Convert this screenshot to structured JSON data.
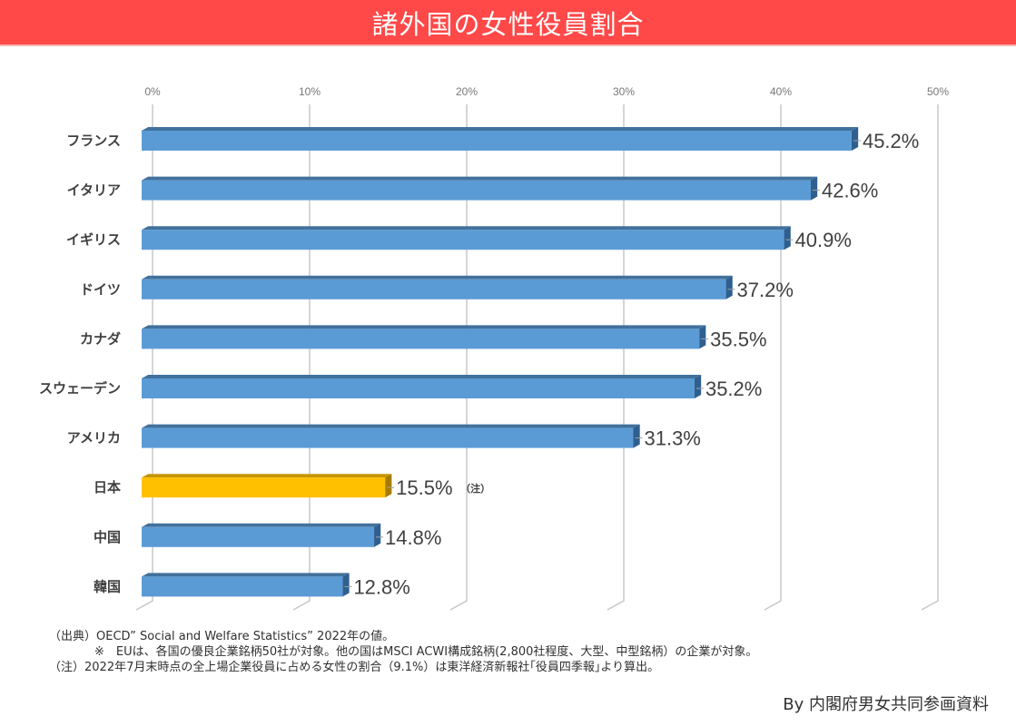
{
  "header": {
    "title": "諸外国の女性役員割合"
  },
  "chart_data": {
    "type": "bar",
    "orientation": "horizontal",
    "style": "3d",
    "title": "諸外国の女性役員割合",
    "xlabel": "",
    "ylabel": "",
    "xlim": [
      0,
      50
    ],
    "x_ticks": [
      0,
      10,
      20,
      30,
      40,
      50
    ],
    "x_tick_labels": [
      "0%",
      "10%",
      "20%",
      "30%",
      "40%",
      "50%"
    ],
    "x_axis_position": "top",
    "grid": true,
    "categories": [
      "フランス",
      "イタリア",
      "イギリス",
      "ドイツ",
      "カナダ",
      "スウェーデン",
      "アメリカ",
      "日本",
      "中国",
      "韓国"
    ],
    "values": [
      45.2,
      42.6,
      40.9,
      37.2,
      35.5,
      35.2,
      31.3,
      15.5,
      14.8,
      12.8
    ],
    "value_labels": [
      "45.2%",
      "42.6%",
      "40.9%",
      "37.2%",
      "35.5%",
      "35.2%",
      "31.3%",
      "15.5%",
      "14.8%",
      "12.8%"
    ],
    "unit": "%",
    "highlight_index": 7,
    "highlight_note": "（注）",
    "colors": {
      "bar": "#5b9bd5",
      "bar_top": "#41719c",
      "bar_side": "#2f5f8f",
      "highlight": "#ffc000",
      "highlight_top": "#c79500",
      "highlight_side": "#a67c00",
      "grid": "#c8c8c8"
    }
  },
  "footnotes": [
    "（出典）OECD” Social and Welfare Statistics” 2022年の値。",
    "※　EUは、各国の優良企業銘柄50社が対象。他の国はMSCI ACWI構成銘柄(2,800社程度、大型、中型銘柄）の企業が対象。",
    "（注）2022年7月末時点の全上場企業役員に占める女性の割合（9.1%）は東洋経済新報社｢役員四季報｣より算出。"
  ],
  "credit": "By 内閣府男女共同参画資料"
}
